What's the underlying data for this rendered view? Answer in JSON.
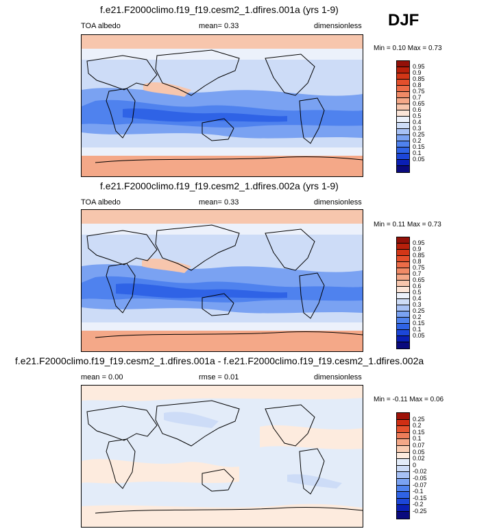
{
  "season": "DJF",
  "palette_full": [
    "#0a0a7d",
    "#0a1fb4",
    "#1c46d8",
    "#2f63e6",
    "#4f82ee",
    "#7aa2f2",
    "#a7c1f5",
    "#cddcf7",
    "#ecf1fb",
    "#fbe5d8",
    "#f7c6ad",
    "#f4a888",
    "#f08a66",
    "#ec6c48",
    "#e34f2c",
    "#d23617",
    "#b8200b",
    "#931109"
  ],
  "palette_diff": [
    "#0a0a7d",
    "#0a1fb4",
    "#1c46d8",
    "#2f63e6",
    "#4f82ee",
    "#7aa2f2",
    "#a7c1f5",
    "#cddcf7",
    "#e3ecf9",
    "#fdebde",
    "#f9cdb3",
    "#f4a888",
    "#ee7d5a",
    "#e5532f",
    "#d02f14",
    "#9e1208"
  ],
  "panels": [
    {
      "title": "f.e21.F2000climo.f19_f19.cesm2_1.dfires.001a (yrs 1-9)",
      "left_label": "TOA albedo",
      "center_label": "mean=   0.33",
      "right_label": "dimensionless",
      "minmax": "Min =   0.10 Max =   0.73",
      "levels": [
        "0.95",
        "0.9",
        "0.85",
        "0.8",
        "0.75",
        "0.7",
        "0.65",
        "0.6",
        "0.5",
        "0.4",
        "0.3",
        "0.25",
        "0.2",
        "0.15",
        "0.1",
        "0.05"
      ]
    },
    {
      "title": "f.e21.F2000climo.f19_f19.cesm2_1.dfires.002a (yrs 1-9)",
      "left_label": "TOA albedo",
      "center_label": "mean=   0.33",
      "right_label": "dimensionless",
      "minmax": "Min =   0.11 Max =   0.73",
      "levels": [
        "0.95",
        "0.9",
        "0.85",
        "0.8",
        "0.75",
        "0.7",
        "0.65",
        "0.6",
        "0.5",
        "0.4",
        "0.3",
        "0.25",
        "0.2",
        "0.15",
        "0.1",
        "0.05"
      ]
    },
    {
      "title": "f.e21.F2000climo.f19_f19.cesm2_1.dfires.001a - f.e21.F2000climo.f19_f19.cesm2_1.dfires.002a",
      "left_label": "mean =   0.00",
      "center_label": "rmse =   0.01",
      "right_label": "dimensionless",
      "minmax": "Min =  -0.11 Max =   0.06",
      "levels": [
        "0.25",
        "0.2",
        "0.15",
        "0.1",
        "0.07",
        "0.05",
        "0.02",
        "0",
        "-0.02",
        "-0.05",
        "-0.07",
        "-0.1",
        "-0.15",
        "-0.2",
        "-0.25"
      ]
    }
  ]
}
